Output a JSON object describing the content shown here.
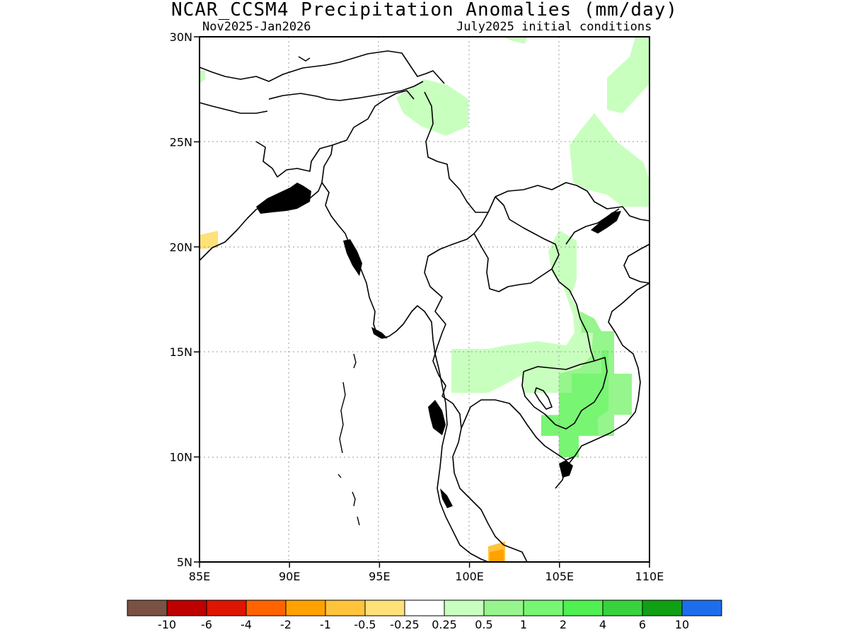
{
  "title": "NCAR_CCSM4 Precipitation Anomalies (mm/day)",
  "subtitle_left": "Nov2025-Jan2026",
  "subtitle_right": "July2025 initial conditions",
  "map": {
    "lon_range": [
      85,
      110
    ],
    "lat_range": [
      5,
      30
    ],
    "lon_ticks": [
      85,
      90,
      95,
      100,
      105,
      110
    ],
    "lon_tick_labels": [
      "85E",
      "90E",
      "95E",
      "100E",
      "105E",
      "110E"
    ],
    "lat_ticks": [
      5,
      10,
      15,
      20,
      25,
      30
    ],
    "lat_tick_labels": [
      "5N",
      "10N",
      "15N",
      "20N",
      "25N",
      "30N"
    ],
    "grid": true
  },
  "colorbar": {
    "colors": [
      "#7a5245",
      "#bd0000",
      "#de1500",
      "#ff6400",
      "#ffa100",
      "#ffc33c",
      "#ffe178",
      "#ffffff",
      "#c8ffbe",
      "#96f58c",
      "#78f573",
      "#50f050",
      "#37d23c",
      "#10a015",
      "#1e6eeb"
    ],
    "labels": [
      "-10",
      "-6",
      "-4",
      "-2",
      "-1",
      "-0.5",
      "-0.25",
      "0.25",
      "0.5",
      "1",
      "2",
      "4",
      "6",
      "10"
    ]
  }
}
